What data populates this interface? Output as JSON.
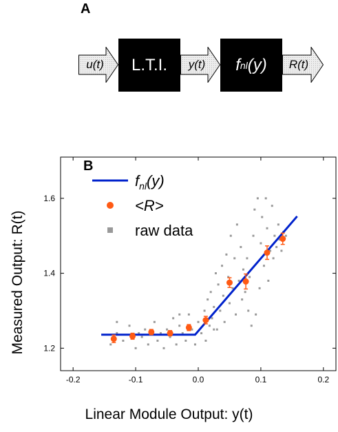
{
  "panel_a": {
    "label": "A",
    "blocks": [
      {
        "text": "L.T.I."
      },
      {
        "text": "f",
        "sub": "nl",
        "after": "(y)"
      }
    ],
    "arrows": [
      {
        "text": "u(t)"
      },
      {
        "text": "y(t)"
      },
      {
        "text": "R(t)"
      }
    ]
  },
  "chart_data": {
    "type": "scatter",
    "panel_label": "B",
    "xlabel": "Linear Module Output: y(t)",
    "ylabel": "Measured Output: R(t)",
    "xlim": [
      -0.22,
      0.22
    ],
    "ylim": [
      1.14,
      1.71
    ],
    "x_ticks": [
      -0.2,
      -0.1,
      0.0,
      0.1,
      0.2
    ],
    "x_tick_labels": [
      "-0.2",
      "-0.1",
      "0.0",
      "0.1",
      "0.2"
    ],
    "y_ticks": [
      1.2,
      1.4,
      1.6
    ],
    "y_tick_labels": [
      "1.2",
      "1.4",
      "1.6"
    ],
    "legend_position": "top-left",
    "legend": [
      {
        "label": "f",
        "sub": "nl",
        "after": "(y)",
        "marker": "line",
        "color": "#0022cc"
      },
      {
        "label": "<R>",
        "marker": "circle",
        "color": "#ff5a14"
      },
      {
        "label": "raw data",
        "marker": "square",
        "color": "#999999"
      }
    ],
    "fit_line": {
      "name": "fnl(y)",
      "color": "#0022cc",
      "points": [
        [
          -0.155,
          1.236
        ],
        [
          -0.005,
          1.236
        ],
        [
          0.158,
          1.552
        ]
      ]
    },
    "mean_points": {
      "name": "<R>",
      "color": "#ff5a14",
      "points": [
        {
          "x": -0.135,
          "y": 1.225,
          "err": 0.01
        },
        {
          "x": -0.105,
          "y": 1.232,
          "err": 0.008
        },
        {
          "x": -0.075,
          "y": 1.243,
          "err": 0.007
        },
        {
          "x": -0.045,
          "y": 1.24,
          "err": 0.007
        },
        {
          "x": -0.015,
          "y": 1.255,
          "err": 0.008
        },
        {
          "x": 0.012,
          "y": 1.275,
          "err": 0.01
        },
        {
          "x": 0.05,
          "y": 1.375,
          "err": 0.013
        },
        {
          "x": 0.076,
          "y": 1.378,
          "err": 0.02
        },
        {
          "x": 0.11,
          "y": 1.455,
          "err": 0.018
        },
        {
          "x": 0.135,
          "y": 1.492,
          "err": 0.015
        }
      ]
    },
    "raw_data": {
      "name": "raw data",
      "color": "#999999",
      "points": [
        [
          -0.14,
          1.21
        ],
        [
          -0.13,
          1.24
        ],
        [
          -0.12,
          1.22
        ],
        [
          -0.11,
          1.26
        ],
        [
          -0.1,
          1.2
        ],
        [
          -0.09,
          1.23
        ],
        [
          -0.085,
          1.25
        ],
        [
          -0.08,
          1.21
        ],
        [
          -0.07,
          1.27
        ],
        [
          -0.065,
          1.22
        ],
        [
          -0.06,
          1.24
        ],
        [
          -0.055,
          1.2
        ],
        [
          -0.05,
          1.25
        ],
        [
          -0.045,
          1.23
        ],
        [
          -0.04,
          1.28
        ],
        [
          -0.035,
          1.21
        ],
        [
          -0.03,
          1.26
        ],
        [
          -0.025,
          1.24
        ],
        [
          -0.02,
          1.22
        ],
        [
          -0.015,
          1.29
        ],
        [
          -0.01,
          1.25
        ],
        [
          -0.005,
          1.21
        ],
        [
          0.0,
          1.27
        ],
        [
          0.005,
          1.24
        ],
        [
          0.01,
          1.3
        ],
        [
          0.012,
          1.22
        ],
        [
          0.015,
          1.33
        ],
        [
          0.018,
          1.26
        ],
        [
          0.02,
          1.35
        ],
        [
          0.022,
          1.28
        ],
        [
          0.025,
          1.31
        ],
        [
          0.028,
          1.4
        ],
        [
          0.03,
          1.25
        ],
        [
          0.032,
          1.37
        ],
        [
          0.035,
          1.3
        ],
        [
          0.038,
          1.42
        ],
        [
          0.04,
          1.34
        ],
        [
          0.042,
          1.27
        ],
        [
          0.045,
          1.45
        ],
        [
          0.048,
          1.39
        ],
        [
          0.05,
          1.32
        ],
        [
          0.052,
          1.5
        ],
        [
          0.055,
          1.36
        ],
        [
          0.058,
          1.44
        ],
        [
          0.06,
          1.29
        ],
        [
          0.062,
          1.53
        ],
        [
          0.065,
          1.38
        ],
        [
          0.068,
          1.47
        ],
        [
          0.07,
          1.33
        ],
        [
          0.072,
          1.41
        ],
        [
          0.075,
          1.35
        ],
        [
          0.078,
          1.44
        ],
        [
          0.08,
          1.3
        ],
        [
          0.082,
          1.39
        ],
        [
          0.085,
          1.26
        ],
        [
          0.088,
          1.5
        ],
        [
          0.09,
          1.57
        ],
        [
          0.092,
          1.29
        ],
        [
          0.095,
          1.6
        ],
        [
          0.098,
          1.36
        ],
        [
          0.1,
          1.48
        ],
        [
          0.102,
          1.55
        ],
        [
          0.105,
          1.42
        ],
        [
          0.108,
          1.6
        ],
        [
          0.11,
          1.52
        ],
        [
          0.112,
          1.38
        ],
        [
          0.115,
          1.46
        ],
        [
          0.118,
          1.58
        ],
        [
          0.12,
          1.44
        ],
        [
          0.122,
          1.5
        ],
        [
          0.125,
          1.47
        ],
        [
          0.128,
          1.53
        ],
        [
          0.13,
          1.49
        ],
        [
          0.133,
          1.46
        ],
        [
          0.136,
          1.51
        ],
        [
          0.14,
          1.5
        ],
        [
          -0.13,
          1.27
        ],
        [
          -0.095,
          1.24
        ],
        [
          -0.03,
          1.29
        ],
        [
          0.025,
          1.25
        ]
      ]
    }
  }
}
